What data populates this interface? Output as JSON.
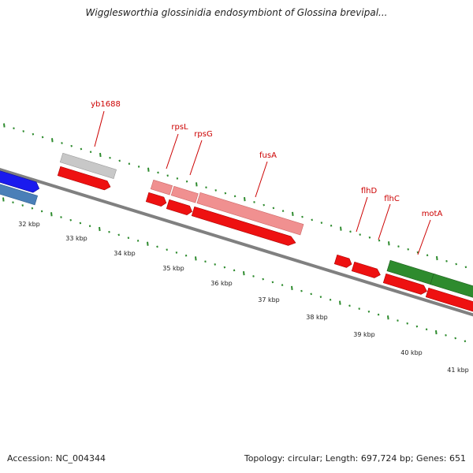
{
  "title": "Wigglesworthia glossinidia endosymbiont of Glossina brevipal...",
  "accession_label": "Accession: NC_004344",
  "topology_label": "Topology: circular; Length: 697,724 bp; Genes: 651",
  "kbp_labels": [
    "32 kbp",
    "33 kbp",
    "34 kbp",
    "35 kbp",
    "36 kbp",
    "37 kbp",
    "38 kbp",
    "39 kbp",
    "40 kbp",
    "41 kbp"
  ],
  "gene_labels": [
    "yb1688",
    "rpsL",
    "rpsG",
    "fusA",
    "flhD",
    "flhC",
    "motA"
  ],
  "colors": {
    "backbone": "#808080",
    "tick": "#2e8b2e",
    "label": "#cc0000",
    "cds": "#ee1111",
    "rrna": "#f09090",
    "grey_feature": "#c8c8c8",
    "blue_feature": "#1a1aee",
    "steelblue_feature": "#4a7fb8",
    "green_feature": "#2e8b2e"
  }
}
